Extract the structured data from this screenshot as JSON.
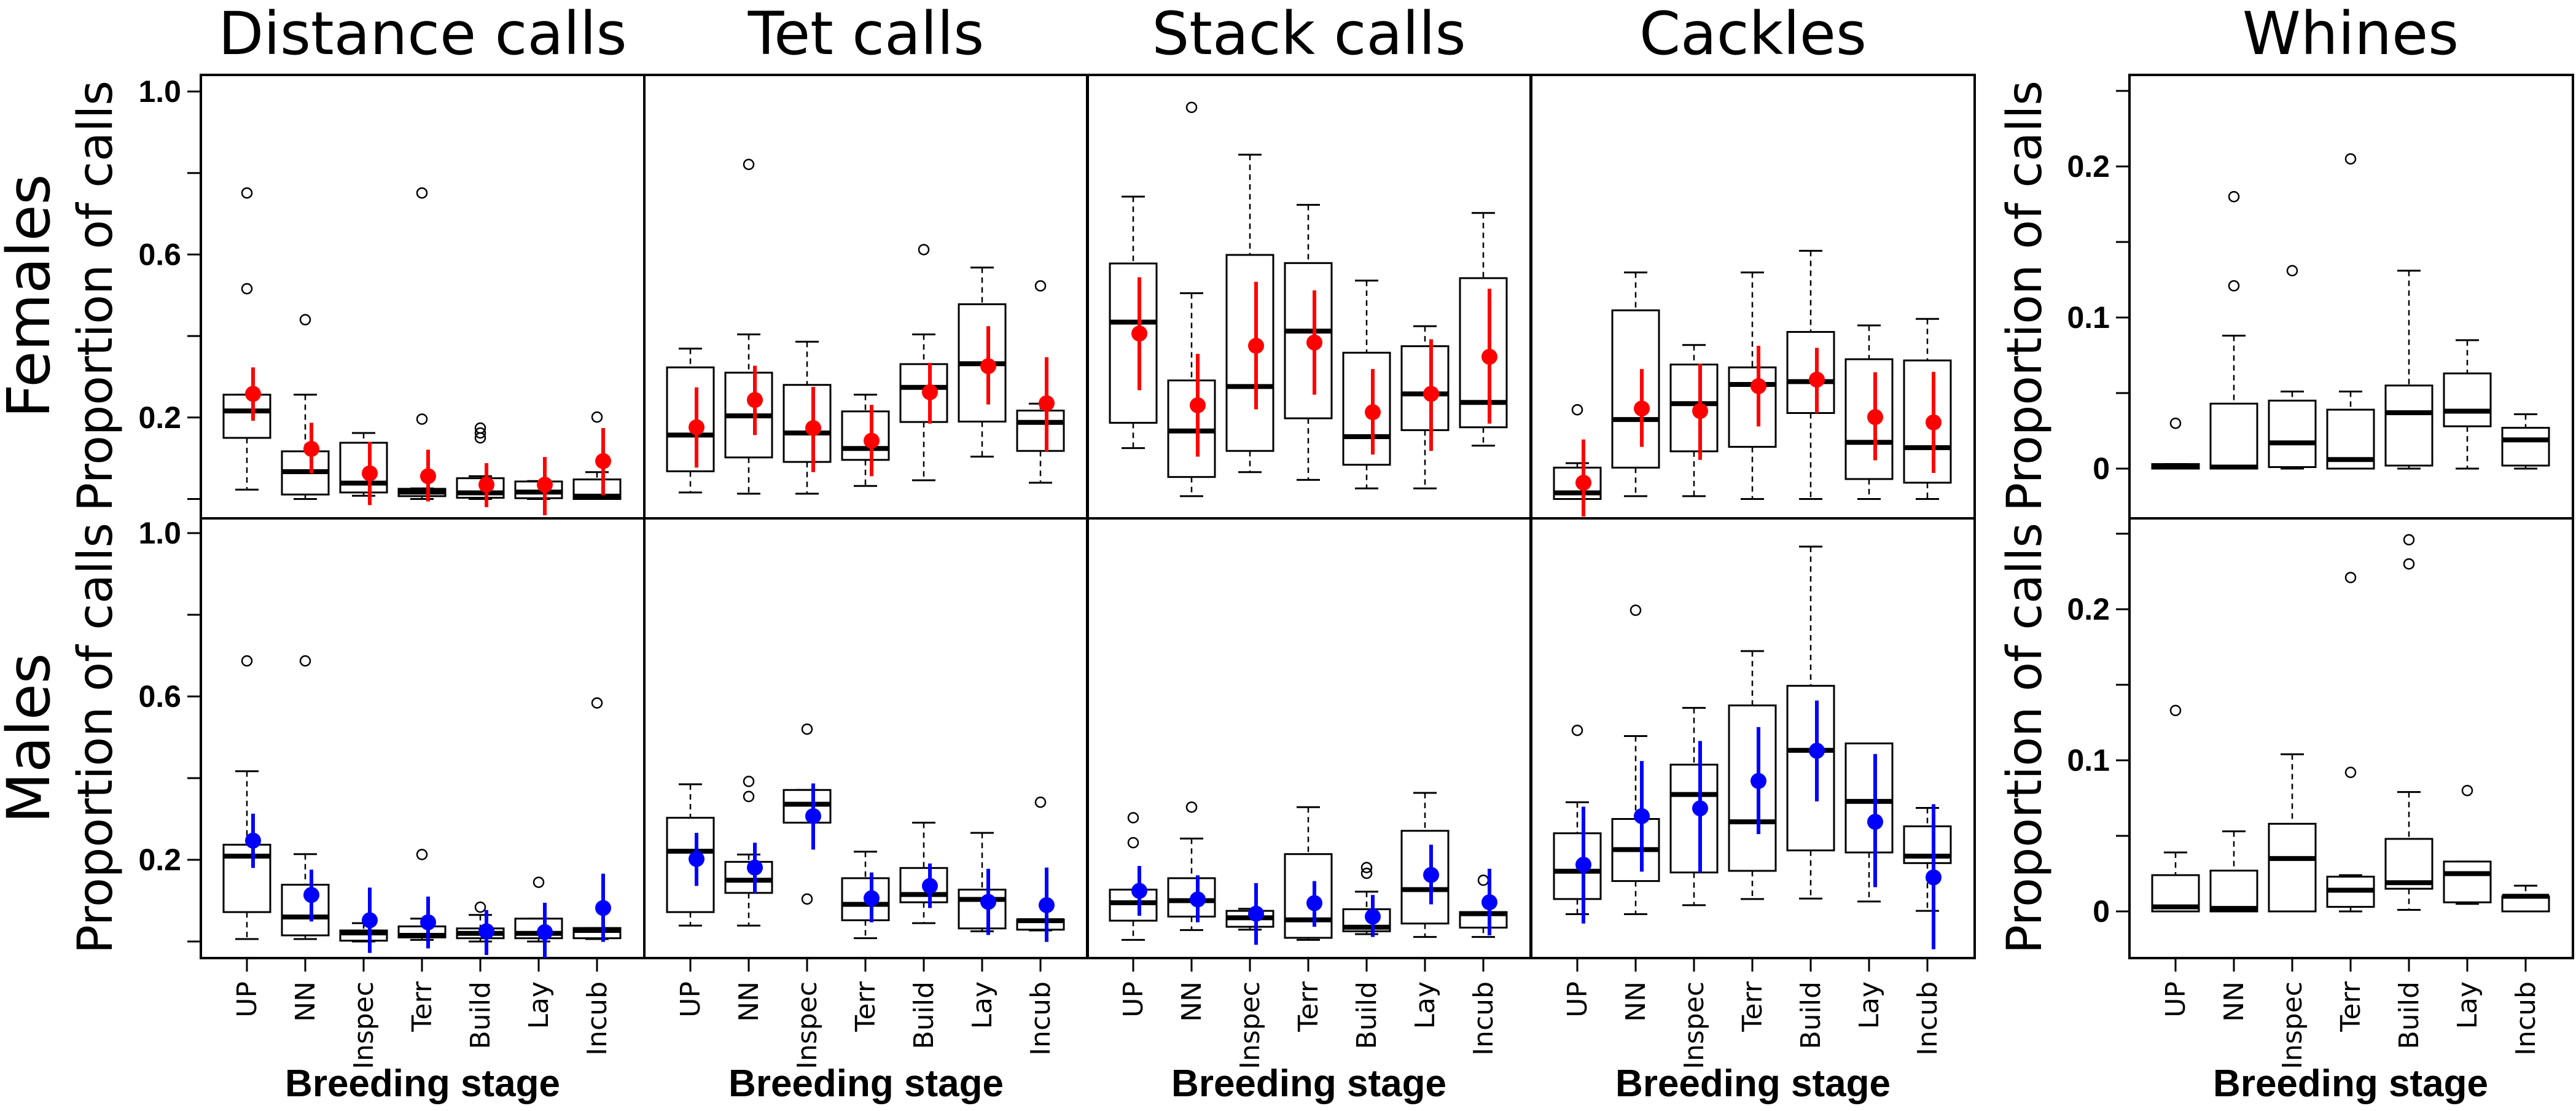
{
  "chart_data": {
    "type": "box",
    "categories": [
      "UP",
      "NN",
      "Inspec",
      "Terr",
      "Build",
      "Lay",
      "Incub"
    ],
    "xlabel": "Breeding stage",
    "ylabel": "Proportion of calls",
    "rows": [
      {
        "name": "Females",
        "mean_color": "#ff0000"
      },
      {
        "name": "Males",
        "mean_color": "#0000ff"
      }
    ],
    "box_format": "[whisker_low, q1, median, q3, whisker_high]",
    "mean_format": "[mean, ci_low, ci_high]",
    "shared_axis": {
      "ylim": [
        0,
        1.0
      ],
      "ticks": [
        0,
        0.2,
        0.4,
        0.6,
        0.8,
        1.0
      ],
      "tick_labels": [
        "",
        "0.2",
        "",
        "0.6",
        "",
        "1.0"
      ]
    },
    "whines_axis": {
      "ylim": [
        -0.03,
        0.26
      ],
      "ticks": [
        0,
        0.05,
        0.1,
        0.15,
        0.2,
        0.25
      ],
      "tick_labels": [
        "0",
        "",
        "0.1",
        "",
        "0.2",
        ""
      ]
    },
    "panels": [
      {
        "title": "Distance calls",
        "Females": {
          "boxes": [
            [
              0.023,
              0.15,
              0.216,
              0.256,
              0.256
            ],
            [
              0,
              0.011,
              0.067,
              0.117,
              0.256
            ],
            [
              0.008,
              0.016,
              0.039,
              0.138,
              0.162
            ],
            [
              0,
              0.007,
              0.017,
              0.025,
              0.026
            ],
            [
              0,
              0.003,
              0.015,
              0.051,
              0.056
            ],
            [
              0,
              0.002,
              0.017,
              0.043,
              0.044
            ],
            [
              0,
              0,
              0.007,
              0.048,
              0.066
            ]
          ],
          "outliers": [
            [
              0.751,
              0.516
            ],
            [
              0.44
            ],
            [],
            [
              0.751,
              0.196
            ],
            [
              0.174,
              0.162,
              0.15
            ],
            [],
            [
              0.201
            ]
          ],
          "means": [
            [
              0.258,
              0.192,
              0.323
            ],
            [
              0.123,
              0.063,
              0.187
            ],
            [
              0.063,
              -0.015,
              0.14
            ],
            [
              0.056,
              -0.006,
              0.121
            ],
            [
              0.035,
              -0.02,
              0.088
            ],
            [
              0.035,
              -0.04,
              0.103
            ],
            [
              0.093,
              0.009,
              0.174
            ]
          ]
        },
        "Males": {
          "boxes": [
            [
              0.006,
              0.072,
              0.209,
              0.237,
              0.417
            ],
            [
              0.006,
              0.015,
              0.06,
              0.139,
              0.214
            ],
            [
              0,
              0.002,
              0.021,
              0.027,
              0.045
            ],
            [
              0.004,
              0.01,
              0.015,
              0.037,
              0.056
            ],
            [
              0,
              0.008,
              0.02,
              0.032,
              0.065
            ],
            [
              0,
              0.008,
              0.02,
              0.056,
              0.056
            ],
            [
              0.006,
              0.008,
              0.027,
              0.033,
              0.033
            ]
          ],
          "outliers": [
            [
              0.687
            ],
            [
              0.687
            ],
            [],
            [
              0.213
            ],
            [
              0.084
            ],
            [
              0.145
            ],
            [
              0.584
            ]
          ],
          "means": [
            [
              0.247,
              0.18,
              0.313
            ],
            [
              0.114,
              0.049,
              0.176
            ],
            [
              0.052,
              -0.028,
              0.132
            ],
            [
              0.047,
              -0.017,
              0.11
            ],
            [
              0.025,
              -0.033,
              0.077
            ],
            [
              0.023,
              -0.043,
              0.095
            ],
            [
              0.082,
              -0.001,
              0.166
            ]
          ]
        }
      },
      {
        "title": "Tet calls",
        "Females": {
          "boxes": [
            [
              0.016,
              0.068,
              0.157,
              0.323,
              0.369
            ],
            [
              0.013,
              0.102,
              0.204,
              0.31,
              0.404
            ],
            [
              0.013,
              0.091,
              0.162,
              0.28,
              0.386
            ],
            [
              0.032,
              0.096,
              0.124,
              0.215,
              0.256
            ],
            [
              0.046,
              0.189,
              0.274,
              0.331,
              0.404
            ],
            [
              0.104,
              0.19,
              0.332,
              0.478,
              0.568
            ],
            [
              0.04,
              0.118,
              0.188,
              0.217,
              0.234
            ]
          ],
          "outliers": [
            [],
            [
              0.821
            ],
            [],
            [],
            [
              0.612
            ],
            [],
            [
              0.523
            ]
          ],
          "means": [
            [
              0.176,
              0.077,
              0.274
            ],
            [
              0.243,
              0.157,
              0.327
            ],
            [
              0.174,
              0.066,
              0.275
            ],
            [
              0.143,
              0.056,
              0.231
            ],
            [
              0.262,
              0.185,
              0.334
            ],
            [
              0.326,
              0.232,
              0.424
            ],
            [
              0.235,
              0.117,
              0.348
            ]
          ]
        },
        "Males": {
          "boxes": [
            [
              0.039,
              0.072,
              0.221,
              0.303,
              0.385
            ],
            [
              0.039,
              0.119,
              0.15,
              0.195,
              0.213
            ],
            [
              0.291,
              0.291,
              0.336,
              0.371,
              0.371
            ],
            [
              0.008,
              0.052,
              0.091,
              0.155,
              0.22
            ],
            [
              0.045,
              0.096,
              0.115,
              0.18,
              0.291
            ],
            [
              0.025,
              0.032,
              0.103,
              0.127,
              0.266
            ],
            [
              0.027,
              0.029,
              0.051,
              0.054,
              0.054
            ]
          ],
          "outliers": [
            [],
            [
              0.392,
              0.355
            ],
            [
              0.52,
              0.104
            ],
            [],
            [],
            [],
            [
              0.341
            ]
          ],
          "means": [
            [
              0.202,
              0.136,
              0.266
            ],
            [
              0.181,
              0.119,
              0.242
            ],
            [
              0.307,
              0.225,
              0.387
            ],
            [
              0.106,
              0.047,
              0.169
            ],
            [
              0.136,
              0.082,
              0.191
            ],
            [
              0.097,
              0.016,
              0.178
            ],
            [
              0.089,
              -0.001,
              0.181
            ]
          ]
        }
      },
      {
        "title": "Stack calls",
        "Females": {
          "boxes": [
            [
              0.125,
              0.187,
              0.434,
              0.578,
              0.742
            ],
            [
              0.007,
              0.054,
              0.167,
              0.291,
              0.505
            ],
            [
              0.066,
              0.118,
              0.276,
              0.599,
              0.845
            ],
            [
              0.047,
              0.198,
              0.412,
              0.579,
              0.722
            ],
            [
              0.026,
              0.084,
              0.153,
              0.359,
              0.536
            ],
            [
              0.026,
              0.169,
              0.258,
              0.375,
              0.424
            ],
            [
              0.131,
              0.176,
              0.237,
              0.542,
              0.702
            ]
          ],
          "outliers": [
            [],
            [
              0.961
            ],
            [],
            [],
            [],
            [],
            []
          ],
          "means": [
            [
              0.406,
              0.267,
              0.544
            ],
            [
              0.23,
              0.104,
              0.356
            ],
            [
              0.376,
              0.22,
              0.533
            ],
            [
              0.384,
              0.256,
              0.512
            ],
            [
              0.213,
              0.109,
              0.319
            ],
            [
              0.258,
              0.118,
              0.392
            ],
            [
              0.349,
              0.185,
              0.516
            ]
          ]
        },
        "Males": {
          "boxes": [
            [
              0.004,
              0.051,
              0.095,
              0.127,
              0.127
            ],
            [
              0.028,
              0.061,
              0.1,
              0.155,
              0.252
            ],
            [
              0.029,
              0.036,
              0.058,
              0.075,
              0.08
            ],
            [
              0.004,
              0.009,
              0.053,
              0.214,
              0.329
            ],
            [
              0.018,
              0.025,
              0.035,
              0.079,
              0.122
            ],
            [
              0.011,
              0.044,
              0.127,
              0.271,
              0.364
            ],
            [
              0.011,
              0.034,
              0.068,
              0.072,
              0.072
            ]
          ],
          "outliers": [
            [
              0.303,
              0.242
            ],
            [
              0.329
            ],
            [],
            [],
            [
              0.181,
              0.167
            ],
            [],
            [
              0.15
            ]
          ],
          "means": [
            [
              0.124,
              0.063,
              0.185
            ],
            [
              0.103,
              0.047,
              0.162
            ],
            [
              0.068,
              -0.008,
              0.143
            ],
            [
              0.094,
              0.036,
              0.148
            ],
            [
              0.061,
              0.011,
              0.114
            ],
            [
              0.163,
              0.091,
              0.237
            ],
            [
              0.096,
              0.015,
              0.178
            ]
          ]
        }
      },
      {
        "title": "Cackles",
        "Females": {
          "boxes": [
            [
              0,
              0,
              0.015,
              0.077,
              0.088
            ],
            [
              0.007,
              0.077,
              0.195,
              0.463,
              0.556
            ],
            [
              0.007,
              0.117,
              0.234,
              0.33,
              0.378
            ],
            [
              0,
              0.128,
              0.281,
              0.323,
              0.556
            ],
            [
              0,
              0.211,
              0.288,
              0.41,
              0.609
            ],
            [
              0,
              0.049,
              0.139,
              0.343,
              0.426
            ],
            [
              0,
              0.04,
              0.126,
              0.34,
              0.442
            ]
          ],
          "outliers": [
            [
              0.219
            ],
            [],
            [],
            [],
            [],
            [],
            []
          ],
          "means": [
            [
              0.04,
              -0.043,
              0.146
            ],
            [
              0.222,
              0.128,
              0.319
            ],
            [
              0.216,
              0.096,
              0.332
            ],
            [
              0.277,
              0.178,
              0.376
            ],
            [
              0.293,
              0.211,
              0.371
            ],
            [
              0.201,
              0.095,
              0.311
            ],
            [
              0.188,
              0.064,
              0.312
            ]
          ]
        },
        "Males": {
          "boxes": [
            [
              0.067,
              0.104,
              0.172,
              0.265,
              0.341
            ],
            [
              0.067,
              0.148,
              0.225,
              0.3,
              0.503
            ],
            [
              0.089,
              0.169,
              0.36,
              0.433,
              0.572
            ],
            [
              0.104,
              0.173,
              0.293,
              0.578,
              0.711
            ],
            [
              0.105,
              0.223,
              0.468,
              0.626,
              0.967
            ],
            [
              0.098,
              0.218,
              0.343,
              0.485,
              0.485
            ],
            [
              0.075,
              0.192,
              0.209,
              0.282,
              0.327
            ]
          ],
          "outliers": [
            [
              0.517
            ],
            [
              0.811
            ],
            [],
            [],
            [],
            [],
            []
          ],
          "means": [
            [
              0.188,
              0.044,
              0.33
            ],
            [
              0.307,
              0.171,
              0.442
            ],
            [
              0.326,
              0.169,
              0.491
            ],
            [
              0.393,
              0.263,
              0.525
            ],
            [
              0.467,
              0.343,
              0.59
            ],
            [
              0.293,
              0.133,
              0.459
            ],
            [
              0.157,
              -0.019,
              0.336
            ]
          ]
        }
      },
      {
        "title": "Whines",
        "axis": "whines_axis",
        "Females": {
          "boxes": [
            [
              0,
              0,
              0.001,
              0.003,
              0.003
            ],
            [
              0,
              0,
              0.001,
              0.043,
              0.088
            ],
            [
              0,
              0.001,
              0.017,
              0.045,
              0.051
            ],
            [
              0,
              0,
              0.006,
              0.039,
              0.051
            ],
            [
              0,
              0.002,
              0.037,
              0.055,
              0.131
            ],
            [
              0,
              0.028,
              0.038,
              0.063,
              0.085
            ],
            [
              0,
              0.002,
              0.019,
              0.027,
              0.036
            ]
          ],
          "outliers": [
            [
              0.03
            ],
            [
              0.18,
              0.121
            ],
            [
              0.131
            ],
            [
              0.205
            ],
            [],
            [],
            []
          ],
          "means": null
        },
        "Males": {
          "boxes": [
            [
              0,
              0,
              0.003,
              0.024,
              0.039
            ],
            [
              0,
              0,
              0.002,
              0.027,
              0.053
            ],
            [
              0,
              0,
              0.035,
              0.058,
              0.104
            ],
            [
              0,
              0.003,
              0.014,
              0.023,
              0.024
            ],
            [
              0.001,
              0.015,
              0.019,
              0.048,
              0.079
            ],
            [
              0.005,
              0.006,
              0.025,
              0.033,
              0.033
            ],
            [
              0,
              0,
              0.01,
              0.01,
              0.017
            ]
          ],
          "outliers": [
            [
              0.133
            ],
            [],
            [],
            [
              0.221,
              0.092
            ],
            [
              0.246,
              0.23
            ],
            [
              0.08
            ],
            []
          ],
          "means": null
        }
      }
    ]
  }
}
